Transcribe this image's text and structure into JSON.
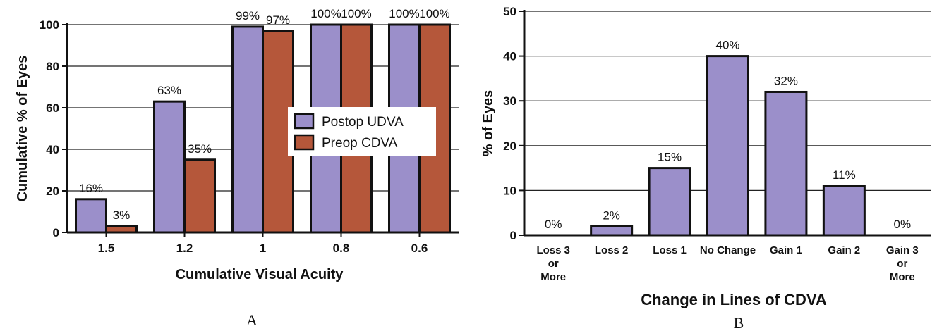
{
  "chart_data": [
    {
      "panel": "A",
      "type": "bar",
      "xlabel": "Cumulative Visual Acuity",
      "ylabel": "Cumulative % of Eyes",
      "ylim": [
        0,
        100
      ],
      "yticks": [
        0,
        20,
        40,
        60,
        80,
        100
      ],
      "categories": [
        "1.5",
        "1.2",
        "1",
        "0.8",
        "0.6"
      ],
      "series": [
        {
          "name": "Postop UDVA",
          "color": "#9b8fca",
          "values": [
            16,
            63,
            99,
            100,
            100
          ],
          "labels": [
            "16%",
            "63%",
            "99%",
            "100%",
            "100%"
          ]
        },
        {
          "name": "Preop CDVA",
          "color": "#b5573a",
          "values": [
            3,
            35,
            97,
            100,
            100
          ],
          "labels": [
            "3%",
            "35%",
            "97%",
            "100%",
            "100%"
          ]
        }
      ],
      "legend": "center-right",
      "grid": "horizontal"
    },
    {
      "panel": "B",
      "type": "bar",
      "xlabel": "Change in Lines of CDVA",
      "ylabel": "% of Eyes",
      "ylim": [
        0,
        50
      ],
      "yticks": [
        0,
        10,
        20,
        30,
        40,
        50
      ],
      "categories": [
        [
          "Loss 3",
          "or",
          "More"
        ],
        [
          "Loss 2"
        ],
        [
          "Loss 1"
        ],
        [
          "No Change"
        ],
        [
          "Gain 1"
        ],
        [
          "Gain 2"
        ],
        [
          "Gain 3",
          "or",
          "More"
        ]
      ],
      "series": [
        {
          "color": "#9b8fca",
          "values": [
            0,
            2,
            15,
            40,
            32,
            11,
            0
          ],
          "labels": [
            "0%",
            "2%",
            "15%",
            "40%",
            "32%",
            "11%",
            "0%"
          ]
        }
      ],
      "grid": "horizontal"
    }
  ]
}
